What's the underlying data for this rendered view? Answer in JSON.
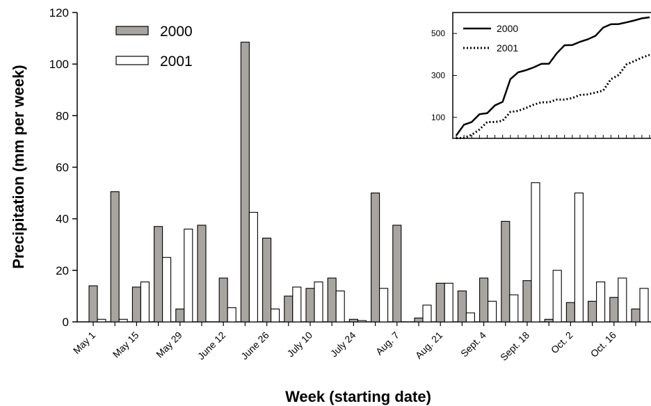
{
  "chart_data": [
    {
      "type": "bar",
      "title": "",
      "xlabel": "Week (starting date)",
      "ylabel": "Precipitation (mm per week)",
      "ylim": [
        0,
        120
      ],
      "yticks": [
        0,
        20,
        40,
        60,
        80,
        100,
        120
      ],
      "tick_labels": [
        "May 1",
        "May 15",
        "May 29",
        "June 12",
        "June 26",
        "July 10",
        "July 24",
        "Aug. 7",
        "Aug. 21",
        "Sept. 4",
        "Sept. 18",
        "Oct. 2",
        "Oct. 16"
      ],
      "legend_position": "top-left",
      "series": [
        {
          "name": "2000",
          "color": "#a8a5a0",
          "values": [
            14,
            50.5,
            13.5,
            37,
            5,
            37.5,
            17,
            108.5,
            32.5,
            10,
            13,
            17,
            1,
            50,
            37.5,
            1.5,
            15,
            12,
            17,
            39,
            16,
            1,
            7.5,
            8,
            9.5,
            5
          ]
        },
        {
          "name": "2001",
          "color": "#ffffff",
          "values": [
            1,
            1,
            15.5,
            25,
            36,
            null,
            5.5,
            42.5,
            5,
            13.5,
            15.5,
            12,
            0.5,
            13,
            null,
            6.5,
            15,
            3.5,
            8,
            10.5,
            54,
            20,
            50,
            15.5,
            17,
            13
          ]
        }
      ]
    },
    {
      "type": "line",
      "title": "",
      "xlabel": "",
      "ylabel": "",
      "yticks": [
        100,
        300,
        500
      ],
      "y_range": [
        0,
        600
      ],
      "legend_position": "top-left",
      "series": [
        {
          "name": "2000",
          "style": "solid",
          "values": [
            14,
            65,
            78,
            115,
            120,
            157,
            174,
            282,
            315,
            325,
            338,
            355,
            356,
            406,
            444,
            445,
            460,
            472,
            489,
            528,
            544,
            545,
            553,
            562,
            572,
            577
          ]
        },
        {
          "name": "2001",
          "style": "dotted",
          "values": [
            1,
            2,
            17,
            42,
            78,
            78,
            84,
            126,
            131,
            145,
            160,
            172,
            172,
            185,
            185,
            192,
            207,
            210,
            218,
            228,
            282,
            302,
            352,
            368,
            385,
            398
          ]
        }
      ]
    }
  ]
}
